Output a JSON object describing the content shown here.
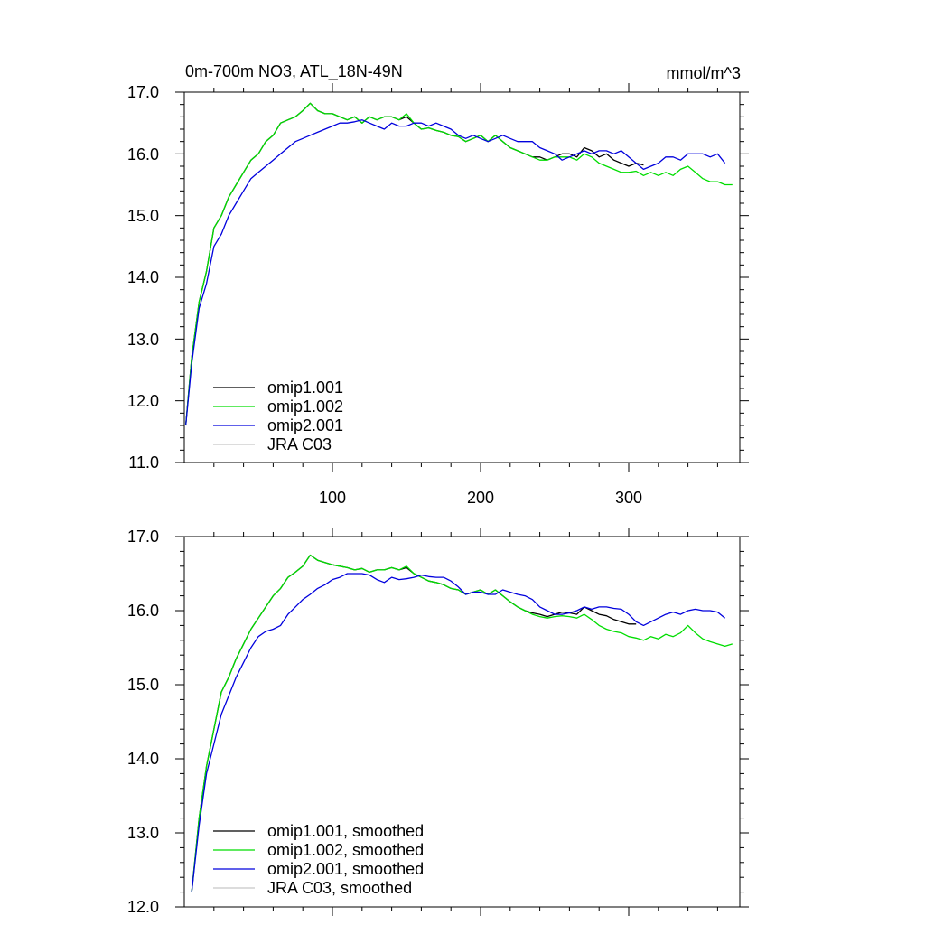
{
  "chart_data": [
    {
      "type": "line",
      "title": "0m-700m NO3, ATL_18N-49N",
      "units": "mmol/m^3",
      "xlabel": "",
      "ylabel": "",
      "xlim": [
        0,
        375
      ],
      "ylim": [
        11.0,
        17.0
      ],
      "xticks": [
        "100",
        "200",
        "300"
      ],
      "yticks": [
        "11.0",
        "12.0",
        "13.0",
        "14.0",
        "15.0",
        "16.0",
        "17.0"
      ],
      "legend_position": "bottom-left",
      "series": [
        {
          "name": "omip1.001",
          "color": "#000000",
          "x": [
            1,
            5,
            10,
            15,
            20,
            25,
            30,
            35,
            40,
            45,
            50,
            55,
            60,
            65,
            70,
            75,
            80,
            85,
            90,
            95,
            100,
            105,
            110,
            115,
            120,
            125,
            130,
            135,
            140,
            145,
            150,
            155,
            160,
            165,
            170,
            175,
            180,
            185,
            190,
            195,
            200,
            205,
            210,
            215,
            220,
            225,
            230,
            235,
            240,
            245,
            250,
            255,
            260,
            265,
            270,
            275,
            280,
            285,
            290,
            295,
            300,
            305,
            310
          ],
          "y": [
            11.6,
            12.7,
            13.6,
            14.1,
            14.8,
            15.0,
            15.3,
            15.5,
            15.7,
            15.9,
            16.0,
            16.2,
            16.3,
            16.5,
            16.55,
            16.6,
            16.7,
            16.82,
            16.7,
            16.65,
            16.65,
            16.6,
            16.55,
            16.6,
            16.5,
            16.6,
            16.55,
            16.6,
            16.6,
            16.55,
            16.6,
            16.5,
            16.4,
            16.42,
            16.38,
            16.35,
            16.3,
            16.28,
            16.2,
            16.25,
            16.3,
            16.2,
            16.3,
            16.2,
            16.1,
            16.05,
            16.0,
            15.95,
            15.95,
            15.9,
            15.95,
            16.0,
            16.0,
            15.95,
            16.1,
            16.05,
            15.95,
            16.0,
            15.9,
            15.85,
            15.8,
            15.85,
            15.82
          ]
        },
        {
          "name": "omip1.002",
          "color": "#00dd00",
          "x": [
            1,
            5,
            10,
            15,
            20,
            25,
            30,
            35,
            40,
            45,
            50,
            55,
            60,
            65,
            70,
            75,
            80,
            85,
            90,
            95,
            100,
            105,
            110,
            115,
            120,
            125,
            130,
            135,
            140,
            145,
            150,
            155,
            160,
            165,
            170,
            175,
            180,
            185,
            190,
            195,
            200,
            205,
            210,
            215,
            220,
            225,
            230,
            235,
            240,
            245,
            250,
            255,
            260,
            265,
            270,
            275,
            280,
            285,
            290,
            295,
            300,
            305,
            310,
            315,
            320,
            325,
            330,
            335,
            340,
            345,
            350,
            355,
            360,
            365,
            370
          ],
          "y": [
            11.6,
            12.7,
            13.6,
            14.1,
            14.8,
            15.0,
            15.3,
            15.5,
            15.7,
            15.9,
            16.0,
            16.2,
            16.3,
            16.5,
            16.55,
            16.6,
            16.7,
            16.82,
            16.7,
            16.65,
            16.65,
            16.6,
            16.55,
            16.6,
            16.5,
            16.6,
            16.55,
            16.6,
            16.6,
            16.55,
            16.65,
            16.5,
            16.4,
            16.42,
            16.38,
            16.35,
            16.3,
            16.28,
            16.2,
            16.25,
            16.3,
            16.2,
            16.3,
            16.2,
            16.1,
            16.05,
            16.0,
            15.95,
            15.9,
            15.9,
            15.95,
            15.95,
            15.95,
            15.9,
            16.0,
            15.95,
            15.85,
            15.8,
            15.75,
            15.7,
            15.7,
            15.72,
            15.65,
            15.7,
            15.65,
            15.7,
            15.65,
            15.75,
            15.8,
            15.7,
            15.6,
            15.55,
            15.55,
            15.5,
            15.5
          ]
        },
        {
          "name": "omip2.001",
          "color": "#0000dd",
          "x": [
            1,
            5,
            10,
            15,
            20,
            25,
            30,
            35,
            40,
            45,
            50,
            55,
            60,
            65,
            70,
            75,
            80,
            85,
            90,
            95,
            100,
            105,
            110,
            115,
            120,
            125,
            130,
            135,
            140,
            145,
            150,
            155,
            160,
            165,
            170,
            175,
            180,
            185,
            190,
            195,
            200,
            205,
            210,
            215,
            220,
            225,
            230,
            235,
            240,
            245,
            250,
            255,
            260,
            265,
            270,
            275,
            280,
            285,
            290,
            295,
            300,
            305,
            310,
            315,
            320,
            325,
            330,
            335,
            340,
            345,
            350,
            355,
            360,
            365
          ],
          "y": [
            11.6,
            12.6,
            13.5,
            13.9,
            14.5,
            14.7,
            15.0,
            15.2,
            15.4,
            15.6,
            15.7,
            15.8,
            15.9,
            16.0,
            16.1,
            16.2,
            16.25,
            16.3,
            16.35,
            16.4,
            16.45,
            16.5,
            16.5,
            16.52,
            16.55,
            16.5,
            16.45,
            16.4,
            16.5,
            16.45,
            16.45,
            16.5,
            16.5,
            16.45,
            16.5,
            16.45,
            16.4,
            16.3,
            16.25,
            16.3,
            16.25,
            16.2,
            16.25,
            16.3,
            16.25,
            16.2,
            16.2,
            16.2,
            16.1,
            16.05,
            16.0,
            15.9,
            15.95,
            16.0,
            16.05,
            16.0,
            16.05,
            16.05,
            16.0,
            16.05,
            15.95,
            15.85,
            15.75,
            15.8,
            15.85,
            15.95,
            15.95,
            15.9,
            16.0,
            16.0,
            16.0,
            15.95,
            16.0,
            15.85
          ]
        },
        {
          "name": "JRA C03",
          "color": "#c8c8c8",
          "x": [],
          "y": []
        }
      ]
    },
    {
      "type": "line",
      "title": "",
      "xlabel": "",
      "ylabel": "",
      "xlim": [
        0,
        375
      ],
      "ylim": [
        12.0,
        17.0
      ],
      "yticks": [
        "12.0",
        "13.0",
        "14.0",
        "15.0",
        "16.0",
        "17.0"
      ],
      "legend_position": "bottom-left",
      "series": [
        {
          "name": "omip1.001, smoothed",
          "color": "#000000",
          "x": [
            5,
            10,
            15,
            20,
            25,
            30,
            35,
            40,
            45,
            50,
            55,
            60,
            65,
            70,
            75,
            80,
            85,
            90,
            95,
            100,
            105,
            110,
            115,
            120,
            125,
            130,
            135,
            140,
            145,
            150,
            155,
            160,
            165,
            170,
            175,
            180,
            185,
            190,
            195,
            200,
            205,
            210,
            215,
            220,
            225,
            230,
            235,
            240,
            245,
            250,
            255,
            260,
            265,
            270,
            275,
            280,
            285,
            290,
            295,
            300,
            305
          ],
          "y": [
            12.2,
            13.2,
            13.9,
            14.4,
            14.9,
            15.1,
            15.35,
            15.55,
            15.75,
            15.9,
            16.05,
            16.2,
            16.3,
            16.45,
            16.52,
            16.6,
            16.75,
            16.68,
            16.65,
            16.62,
            16.6,
            16.58,
            16.55,
            16.57,
            16.52,
            16.55,
            16.55,
            16.58,
            16.55,
            16.58,
            16.5,
            16.45,
            16.4,
            16.38,
            16.35,
            16.3,
            16.28,
            16.22,
            16.25,
            16.28,
            16.22,
            16.28,
            16.2,
            16.12,
            16.05,
            16.0,
            15.97,
            15.95,
            15.92,
            15.95,
            15.98,
            15.97,
            15.95,
            16.05,
            16.0,
            15.95,
            15.93,
            15.88,
            15.85,
            15.82,
            15.82
          ]
        },
        {
          "name": "omip1.002, smoothed",
          "color": "#00dd00",
          "x": [
            5,
            10,
            15,
            20,
            25,
            30,
            35,
            40,
            45,
            50,
            55,
            60,
            65,
            70,
            75,
            80,
            85,
            90,
            95,
            100,
            105,
            110,
            115,
            120,
            125,
            130,
            135,
            140,
            145,
            150,
            155,
            160,
            165,
            170,
            175,
            180,
            185,
            190,
            195,
            200,
            205,
            210,
            215,
            220,
            225,
            230,
            235,
            240,
            245,
            250,
            255,
            260,
            265,
            270,
            275,
            280,
            285,
            290,
            295,
            300,
            305,
            310,
            315,
            320,
            325,
            330,
            335,
            340,
            345,
            350,
            355,
            360,
            365,
            370
          ],
          "y": [
            12.2,
            13.2,
            13.9,
            14.4,
            14.9,
            15.1,
            15.35,
            15.55,
            15.75,
            15.9,
            16.05,
            16.2,
            16.3,
            16.45,
            16.52,
            16.6,
            16.75,
            16.68,
            16.65,
            16.62,
            16.6,
            16.58,
            16.55,
            16.57,
            16.52,
            16.55,
            16.55,
            16.58,
            16.55,
            16.6,
            16.5,
            16.45,
            16.4,
            16.38,
            16.35,
            16.3,
            16.28,
            16.22,
            16.25,
            16.28,
            16.22,
            16.28,
            16.2,
            16.12,
            16.05,
            16.0,
            15.95,
            15.92,
            15.9,
            15.92,
            15.93,
            15.92,
            15.9,
            15.95,
            15.88,
            15.8,
            15.75,
            15.72,
            15.7,
            15.65,
            15.63,
            15.6,
            15.65,
            15.62,
            15.68,
            15.65,
            15.7,
            15.8,
            15.7,
            15.62,
            15.58,
            15.55,
            15.52,
            15.55
          ]
        },
        {
          "name": "omip2.001, smoothed",
          "color": "#0000dd",
          "x": [
            5,
            10,
            15,
            20,
            25,
            30,
            35,
            40,
            45,
            50,
            55,
            60,
            65,
            70,
            75,
            80,
            85,
            90,
            95,
            100,
            105,
            110,
            115,
            120,
            125,
            130,
            135,
            140,
            145,
            150,
            155,
            160,
            165,
            170,
            175,
            180,
            185,
            190,
            195,
            200,
            205,
            210,
            215,
            220,
            225,
            230,
            235,
            240,
            245,
            250,
            255,
            260,
            265,
            270,
            275,
            280,
            285,
            290,
            295,
            300,
            305,
            310,
            315,
            320,
            325,
            330,
            335,
            340,
            345,
            350,
            355,
            360,
            365
          ],
          "y": [
            12.2,
            13.1,
            13.8,
            14.2,
            14.6,
            14.85,
            15.1,
            15.3,
            15.5,
            15.65,
            15.72,
            15.75,
            15.8,
            15.95,
            16.05,
            16.15,
            16.22,
            16.3,
            16.35,
            16.42,
            16.45,
            16.5,
            16.5,
            16.5,
            16.48,
            16.42,
            16.38,
            16.45,
            16.42,
            16.43,
            16.45,
            16.48,
            16.46,
            16.45,
            16.45,
            16.4,
            16.32,
            16.22,
            16.25,
            16.25,
            16.22,
            16.22,
            16.28,
            16.25,
            16.22,
            16.2,
            16.15,
            16.05,
            16.0,
            15.95,
            15.95,
            15.97,
            16.0,
            16.05,
            16.02,
            16.05,
            16.05,
            16.03,
            16.02,
            15.95,
            15.85,
            15.8,
            15.85,
            15.9,
            15.95,
            15.98,
            15.95,
            16.0,
            16.02,
            16.0,
            16.0,
            15.98,
            15.9
          ]
        },
        {
          "name": "JRA C03, smoothed",
          "color": "#c8c8c8",
          "x": [],
          "y": []
        }
      ]
    }
  ]
}
